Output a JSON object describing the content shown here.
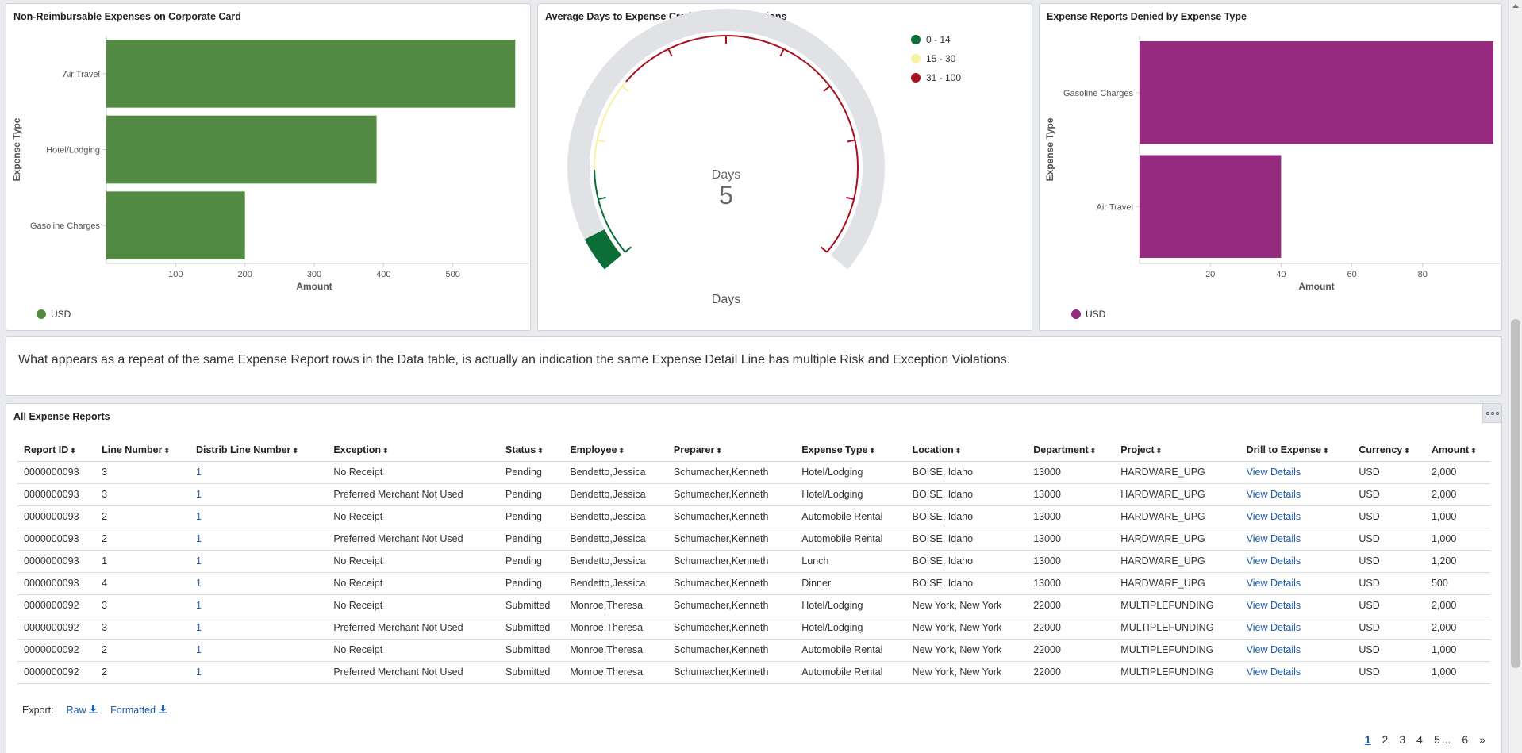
{
  "chart1": {
    "title": "Non-Reimbursable Expenses on Corporate Card",
    "legend": "USD",
    "color": "#548b44",
    "chart_data": {
      "type": "bar",
      "orientation": "horizontal",
      "categories": [
        "Air Travel",
        "Hotel/Lodging",
        "Gasoline Charges"
      ],
      "values": [
        590,
        390,
        200
      ],
      "xlabel": "Amount",
      "ylabel": "Expense Type",
      "xlim": [
        0,
        600
      ],
      "ticks": [
        100,
        200,
        300,
        400,
        500
      ],
      "tick_labels": [
        "100",
        "200",
        "300",
        "400",
        "500"
      ]
    }
  },
  "chart2": {
    "title": "Average Days to Expense Credit Card Transactions",
    "value_label": "Days",
    "value": "5",
    "axis_label": "Days",
    "legend": [
      {
        "label": "0 - 14",
        "color": "#0b6e36"
      },
      {
        "label": "15 - 30",
        "color": "#f7f1a4"
      },
      {
        "label": "31 - 100",
        "color": "#a6101f"
      }
    ],
    "chart_data": {
      "type": "gauge",
      "min": 0,
      "max": 100,
      "value": 5,
      "bands": [
        [
          0,
          14
        ],
        [
          15,
          30
        ],
        [
          31,
          100
        ]
      ]
    }
  },
  "chart3": {
    "title": "Expense Reports Denied by Expense Type",
    "legend": "USD",
    "color": "#962a7f",
    "chart_data": {
      "type": "bar",
      "orientation": "horizontal",
      "categories": [
        "Gasoline Charges",
        "Air Travel"
      ],
      "values": [
        100,
        40
      ],
      "xlabel": "Amount",
      "ylabel": "Expense Type",
      "xlim": [
        0,
        100
      ],
      "ticks": [
        20,
        40,
        60,
        80
      ],
      "tick_labels": [
        "20",
        "40",
        "60",
        "80"
      ]
    }
  },
  "note": "What appears as a repeat of the same Expense Report rows in the Data table, is actually an indication the same Expense Detail Line has multiple Risk and Exception Violations.",
  "table": {
    "title": "All Expense Reports",
    "columns": [
      "Report ID",
      "Line Number",
      "Distrib Line Number",
      "Exception",
      "Status",
      "Employee",
      "Preparer",
      "Expense Type",
      "Location",
      "Department",
      "Project",
      "Drill to Expense",
      "Currency",
      "Amount"
    ],
    "rows": [
      [
        "0000000093",
        "3",
        "1",
        "No Receipt",
        "Pending",
        "Bendetto,Jessica",
        "Schumacher,Kenneth",
        "Hotel/Lodging",
        "BOISE, Idaho",
        "13000",
        "HARDWARE_UPG",
        "View Details",
        "USD",
        "2,000"
      ],
      [
        "0000000093",
        "3",
        "1",
        "Preferred Merchant Not Used",
        "Pending",
        "Bendetto,Jessica",
        "Schumacher,Kenneth",
        "Hotel/Lodging",
        "BOISE, Idaho",
        "13000",
        "HARDWARE_UPG",
        "View Details",
        "USD",
        "2,000"
      ],
      [
        "0000000093",
        "2",
        "1",
        "No Receipt",
        "Pending",
        "Bendetto,Jessica",
        "Schumacher,Kenneth",
        "Automobile Rental",
        "BOISE, Idaho",
        "13000",
        "HARDWARE_UPG",
        "View Details",
        "USD",
        "1,000"
      ],
      [
        "0000000093",
        "2",
        "1",
        "Preferred Merchant Not Used",
        "Pending",
        "Bendetto,Jessica",
        "Schumacher,Kenneth",
        "Automobile Rental",
        "BOISE, Idaho",
        "13000",
        "HARDWARE_UPG",
        "View Details",
        "USD",
        "1,000"
      ],
      [
        "0000000093",
        "1",
        "1",
        "No Receipt",
        "Pending",
        "Bendetto,Jessica",
        "Schumacher,Kenneth",
        "Lunch",
        "BOISE, Idaho",
        "13000",
        "HARDWARE_UPG",
        "View Details",
        "USD",
        "1,200"
      ],
      [
        "0000000093",
        "4",
        "1",
        "No Receipt",
        "Pending",
        "Bendetto,Jessica",
        "Schumacher,Kenneth",
        "Dinner",
        "BOISE, Idaho",
        "13000",
        "HARDWARE_UPG",
        "View Details",
        "USD",
        "500"
      ],
      [
        "0000000092",
        "3",
        "1",
        "No Receipt",
        "Submitted",
        "Monroe,Theresa",
        "Schumacher,Kenneth",
        "Hotel/Lodging",
        "New York, New York",
        "22000",
        "MULTIPLEFUNDING",
        "View Details",
        "USD",
        "2,000"
      ],
      [
        "0000000092",
        "3",
        "1",
        "Preferred Merchant Not Used",
        "Submitted",
        "Monroe,Theresa",
        "Schumacher,Kenneth",
        "Hotel/Lodging",
        "New York, New York",
        "22000",
        "MULTIPLEFUNDING",
        "View Details",
        "USD",
        "2,000"
      ],
      [
        "0000000092",
        "2",
        "1",
        "No Receipt",
        "Submitted",
        "Monroe,Theresa",
        "Schumacher,Kenneth",
        "Automobile Rental",
        "New York, New York",
        "22000",
        "MULTIPLEFUNDING",
        "View Details",
        "USD",
        "1,000"
      ],
      [
        "0000000092",
        "2",
        "1",
        "Preferred Merchant Not Used",
        "Submitted",
        "Monroe,Theresa",
        "Schumacher,Kenneth",
        "Automobile Rental",
        "New York, New York",
        "22000",
        "MULTIPLEFUNDING",
        "View Details",
        "USD",
        "1,000"
      ]
    ],
    "link_columns": [
      2,
      11
    ],
    "export_label": "Export:",
    "export_raw": "Raw",
    "export_formatted": "Formatted",
    "pages": [
      "1",
      "2",
      "3",
      "4",
      "5",
      "...",
      "6",
      "»"
    ],
    "current_page": "1"
  }
}
